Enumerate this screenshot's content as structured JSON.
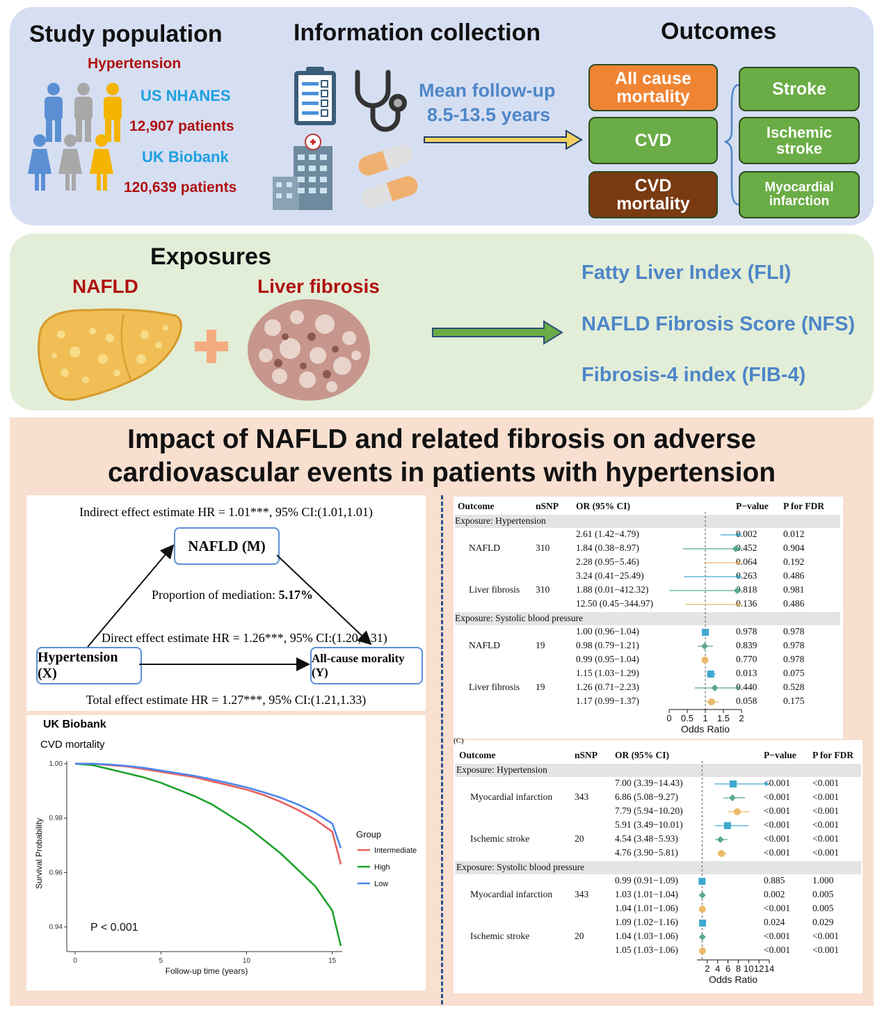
{
  "top": {
    "study_title": "Study population",
    "hypertension": "Hypertension",
    "nhanes_label": "US NHANES",
    "nhanes_count": "12,907 patients",
    "ukb_label": "UK Biobank",
    "ukb_count": "120,639 patients",
    "info_title": "Information collection",
    "followup_line1": "Mean follow-up",
    "followup_line2": "8.5-13.5 years",
    "outcomes_title": "Outcomes",
    "outcomes": {
      "all_cause_l1": "All cause",
      "all_cause_l2": "mortality",
      "cvd": "CVD",
      "cvd_mort_l1": "CVD",
      "cvd_mort_l2": "mortality",
      "stroke": "Stroke",
      "ischemic_l1": "Ischemic",
      "ischemic_l2": "stroke",
      "mi_l1": "Myocardial",
      "mi_l2": "infarction"
    },
    "colors": {
      "orange": "#ef8433",
      "green": "#6aac45",
      "brown": "#7a3a12",
      "panel_blue": "#d6dff2",
      "panel_green": "#e2eed8",
      "panel_peach": "#f8dfd0"
    }
  },
  "exposures": {
    "title": "Exposures",
    "nafld": "NAFLD",
    "fibrosis": "Liver fibrosis",
    "indices": [
      "Fatty Liver Index (FLI)",
      "NAFLD Fibrosis Score (NFS)",
      "Fibrosis-4 index (FIB-4)"
    ]
  },
  "main": {
    "title_line1": "Impact of NAFLD and related fibrosis on adverse",
    "title_line2": "cardiovascular events in patients with hypertension"
  },
  "mediation": {
    "indirect": "Indirect effect estimate HR = 1.01***, 95% CI:(1.01,1.01)",
    "mediator": "NAFLD (M)",
    "proportion_label": "Proportion of mediation: ",
    "proportion_value": "5.17%",
    "direct": "Direct effect estimate HR = 1.26***, 95% CI:(1.20,1.31)",
    "exposure": "Hypertension (X)",
    "outcome": "All-cause morality (Y)",
    "total": "Total effect estimate HR = 1.27***, 95% CI:(1.21,1.33)"
  },
  "km_chart": {
    "title": "UK Biobank",
    "subtitle": "CVD mortality",
    "ylabel": "Survival Probability",
    "xlabel": "Follow-up time (years)",
    "pvalue": "P < 0.001",
    "legend_title": "Group",
    "x_ticks": [
      "0",
      "5",
      "10",
      "15"
    ],
    "y_ticks": [
      "1.00",
      "0.98",
      "0.96",
      "0.94"
    ]
  },
  "chart_data": {
    "type": "line",
    "title": "UK Biobank",
    "subtitle": "CVD mortality",
    "xlabel": "Follow-up time (years)",
    "ylabel": "Survival Probability",
    "xlim": [
      0,
      15.5
    ],
    "ylim": [
      0.933,
      1.001
    ],
    "legend_title": "Group",
    "legend_position": "right",
    "series": [
      {
        "name": "Intermediate",
        "color": "#e8605c",
        "x": [
          0,
          1,
          2,
          3,
          4,
          5,
          6,
          7,
          8,
          9,
          10,
          11,
          12,
          13,
          14,
          15,
          15.5
        ],
        "values": [
          1.0,
          1.0,
          0.9995,
          0.999,
          0.998,
          0.997,
          0.996,
          0.995,
          0.9935,
          0.992,
          0.9905,
          0.9885,
          0.986,
          0.983,
          0.9795,
          0.975,
          0.963
        ]
      },
      {
        "name": "High",
        "color": "#1ea22a",
        "x": [
          0,
          1,
          2,
          3,
          4,
          5,
          6,
          7,
          8,
          9,
          10,
          11,
          12,
          13,
          14,
          15,
          15.5
        ],
        "values": [
          1.0,
          0.9995,
          0.998,
          0.9965,
          0.995,
          0.993,
          0.9905,
          0.988,
          0.985,
          0.981,
          0.977,
          0.972,
          0.967,
          0.961,
          0.955,
          0.946,
          0.933
        ]
      },
      {
        "name": "Low",
        "color": "#4d87ee",
        "x": [
          0,
          1,
          2,
          3,
          4,
          5,
          6,
          7,
          8,
          9,
          10,
          11,
          12,
          13,
          14,
          15,
          15.5
        ],
        "values": [
          1.0,
          1.0,
          0.9997,
          0.9992,
          0.9985,
          0.9975,
          0.9965,
          0.9955,
          0.9942,
          0.9928,
          0.9913,
          0.9895,
          0.9875,
          0.985,
          0.982,
          0.978,
          0.969
        ]
      }
    ]
  },
  "forest_top": {
    "headers": {
      "outcome": "Outcome",
      "nsnp": "nSNP",
      "or": "OR (95% CI)",
      "p": "P−value",
      "fdr": "P for FDR"
    },
    "axis_label": "Odds Ratio",
    "axis_ticks": [
      "0",
      "0.5",
      "1",
      "1.5",
      "2"
    ],
    "scale": [
      0,
      2
    ],
    "ref": 1,
    "groups": [
      {
        "label": "Exposure: Hypertension",
        "rows": [
          {
            "outcome": "",
            "nsnp": "",
            "or": "2.61 (1.42−4.79)",
            "p": "0.002",
            "fdr": "0.012",
            "est": 2.61,
            "lo": 1.42,
            "hi": 4.79,
            "color": "#3ea9cf",
            "shape": "square"
          },
          {
            "outcome": "NAFLD",
            "nsnp": "310",
            "or": "1.84 (0.38−8.97)",
            "p": "0.452",
            "fdr": "0.904",
            "est": 1.84,
            "lo": 0.38,
            "hi": 8.97,
            "color": "#5aa88e",
            "shape": "diamond"
          },
          {
            "outcome": "",
            "nsnp": "",
            "or": "2.28 (0.95−5.46)",
            "p": "0.064",
            "fdr": "0.192",
            "est": 2.28,
            "lo": 0.95,
            "hi": 5.46,
            "color": "#eab96a",
            "shape": "circle"
          },
          {
            "outcome": "",
            "nsnp": "",
            "or": "3.24 (0.41−25.49)",
            "p": "0.263",
            "fdr": "0.486",
            "est": 3.24,
            "lo": 0.41,
            "hi": 25.49,
            "color": "#3ea9cf",
            "shape": "square"
          },
          {
            "outcome": "Liver fibrosis",
            "nsnp": "310",
            "or": "1.88 (0.01−412.32)",
            "p": "0.818",
            "fdr": "0.981",
            "est": 1.88,
            "lo": 0.01,
            "hi": 412.32,
            "color": "#5aa88e",
            "shape": "diamond"
          },
          {
            "outcome": "",
            "nsnp": "",
            "or": "12.50 (0.45−344.97)",
            "p": "0.136",
            "fdr": "0.486",
            "est": 12.5,
            "lo": 0.45,
            "hi": 344.97,
            "color": "#eab96a",
            "shape": "circle"
          }
        ]
      },
      {
        "label": "Exposure: Systolic blood pressure",
        "rows": [
          {
            "outcome": "",
            "nsnp": "",
            "or": "1.00 (0.96−1.04)",
            "p": "0.978",
            "fdr": "0.978",
            "est": 1.0,
            "lo": 0.96,
            "hi": 1.04,
            "color": "#3ea9cf",
            "shape": "square"
          },
          {
            "outcome": "NAFLD",
            "nsnp": "19",
            "or": "0.98 (0.79−1.21)",
            "p": "0.839",
            "fdr": "0.978",
            "est": 0.98,
            "lo": 0.79,
            "hi": 1.21,
            "color": "#5aa88e",
            "shape": "diamond"
          },
          {
            "outcome": "",
            "nsnp": "",
            "or": "0.99 (0.95−1.04)",
            "p": "0.770",
            "fdr": "0.978",
            "est": 0.99,
            "lo": 0.95,
            "hi": 1.04,
            "color": "#eab96a",
            "shape": "circle"
          },
          {
            "outcome": "",
            "nsnp": "",
            "or": "1.15 (1.03−1.29)",
            "p": "0.013",
            "fdr": "0.075",
            "est": 1.15,
            "lo": 1.03,
            "hi": 1.29,
            "color": "#3ea9cf",
            "shape": "square"
          },
          {
            "outcome": "Liver fibrosis",
            "nsnp": "19",
            "or": "1.26 (0.71−2.23)",
            "p": "0.440",
            "fdr": "0.528",
            "est": 1.26,
            "lo": 0.71,
            "hi": 2.23,
            "color": "#5aa88e",
            "shape": "diamond"
          },
          {
            "outcome": "",
            "nsnp": "",
            "or": "1.17 (0.99−1.37)",
            "p": "0.058",
            "fdr": "0.175",
            "est": 1.17,
            "lo": 0.99,
            "hi": 1.37,
            "color": "#eab96a",
            "shape": "circle"
          }
        ]
      }
    ]
  },
  "forest_bottom": {
    "panel_label": "(C)",
    "headers": {
      "outcome": "Outcome",
      "nsnp": "nSNP",
      "or": "OR (95% CI)",
      "p": "P−value",
      "fdr": "P for FDR"
    },
    "axis_label": "Odds Ratio",
    "axis_ticks": [
      "2",
      "4",
      "6",
      "8",
      "10",
      "12",
      "14"
    ],
    "scale": [
      0,
      14
    ],
    "ref": 1,
    "groups": [
      {
        "label": "Exposure: Hypertension",
        "rows": [
          {
            "outcome": "",
            "nsnp": "",
            "or": "7.00 (3.39−14.43)",
            "p": "<0.001",
            "fdr": "<0.001",
            "est": 7.0,
            "lo": 3.39,
            "hi": 14.43,
            "color": "#3ea9cf",
            "shape": "square"
          },
          {
            "outcome": "Myocardial infarction",
            "nsnp": "343",
            "or": "6.86 (5.08−9.27)",
            "p": "<0.001",
            "fdr": "<0.001",
            "est": 6.86,
            "lo": 5.08,
            "hi": 9.27,
            "color": "#5aa88e",
            "shape": "diamond"
          },
          {
            "outcome": "",
            "nsnp": "",
            "or": "7.79 (5.94−10.20)",
            "p": "<0.001",
            "fdr": "<0.001",
            "est": 7.79,
            "lo": 5.94,
            "hi": 10.2,
            "color": "#eab96a",
            "shape": "circle"
          },
          {
            "outcome": "",
            "nsnp": "",
            "or": "5.91 (3.49−10.01)",
            "p": "<0.001",
            "fdr": "<0.001",
            "est": 5.91,
            "lo": 3.49,
            "hi": 10.01,
            "color": "#3ea9cf",
            "shape": "square"
          },
          {
            "outcome": "Ischemic stroke",
            "nsnp": "20",
            "or": "4.54 (3.48−5.93)",
            "p": "<0.001",
            "fdr": "<0.001",
            "est": 4.54,
            "lo": 3.48,
            "hi": 5.93,
            "color": "#5aa88e",
            "shape": "diamond"
          },
          {
            "outcome": "",
            "nsnp": "",
            "or": "4.76 (3.90−5.81)",
            "p": "<0.001",
            "fdr": "<0.001",
            "est": 4.76,
            "lo": 3.9,
            "hi": 5.81,
            "color": "#eab96a",
            "shape": "circle"
          }
        ]
      },
      {
        "label": "Exposure: Systolic blood pressure",
        "rows": [
          {
            "outcome": "",
            "nsnp": "",
            "or": "0.99 (0.91−1.09)",
            "p": "0.885",
            "fdr": "1.000",
            "est": 0.99,
            "lo": 0.91,
            "hi": 1.09,
            "color": "#3ea9cf",
            "shape": "square"
          },
          {
            "outcome": "Myocardial infarction",
            "nsnp": "343",
            "or": "1.03 (1.01−1.04)",
            "p": "0.002",
            "fdr": "0.005",
            "est": 1.03,
            "lo": 1.01,
            "hi": 1.04,
            "color": "#5aa88e",
            "shape": "diamond"
          },
          {
            "outcome": "",
            "nsnp": "",
            "or": "1.04 (1.01−1.06)",
            "p": "<0.001",
            "fdr": "0.005",
            "est": 1.04,
            "lo": 1.01,
            "hi": 1.06,
            "color": "#eab96a",
            "shape": "circle"
          },
          {
            "outcome": "",
            "nsnp": "",
            "or": "1.09 (1.02−1.16)",
            "p": "0.024",
            "fdr": "0.029",
            "est": 1.09,
            "lo": 1.02,
            "hi": 1.16,
            "color": "#3ea9cf",
            "shape": "square"
          },
          {
            "outcome": "Ischemic stroke",
            "nsnp": "20",
            "or": "1.04 (1.03−1.06)",
            "p": "<0.001",
            "fdr": "<0.001",
            "est": 1.04,
            "lo": 1.03,
            "hi": 1.06,
            "color": "#5aa88e",
            "shape": "diamond"
          },
          {
            "outcome": "",
            "nsnp": "",
            "or": "1.05 (1.03−1.06)",
            "p": "<0.001",
            "fdr": "<0.001",
            "est": 1.05,
            "lo": 1.03,
            "hi": 1.06,
            "color": "#eab96a",
            "shape": "circle"
          }
        ]
      }
    ]
  }
}
